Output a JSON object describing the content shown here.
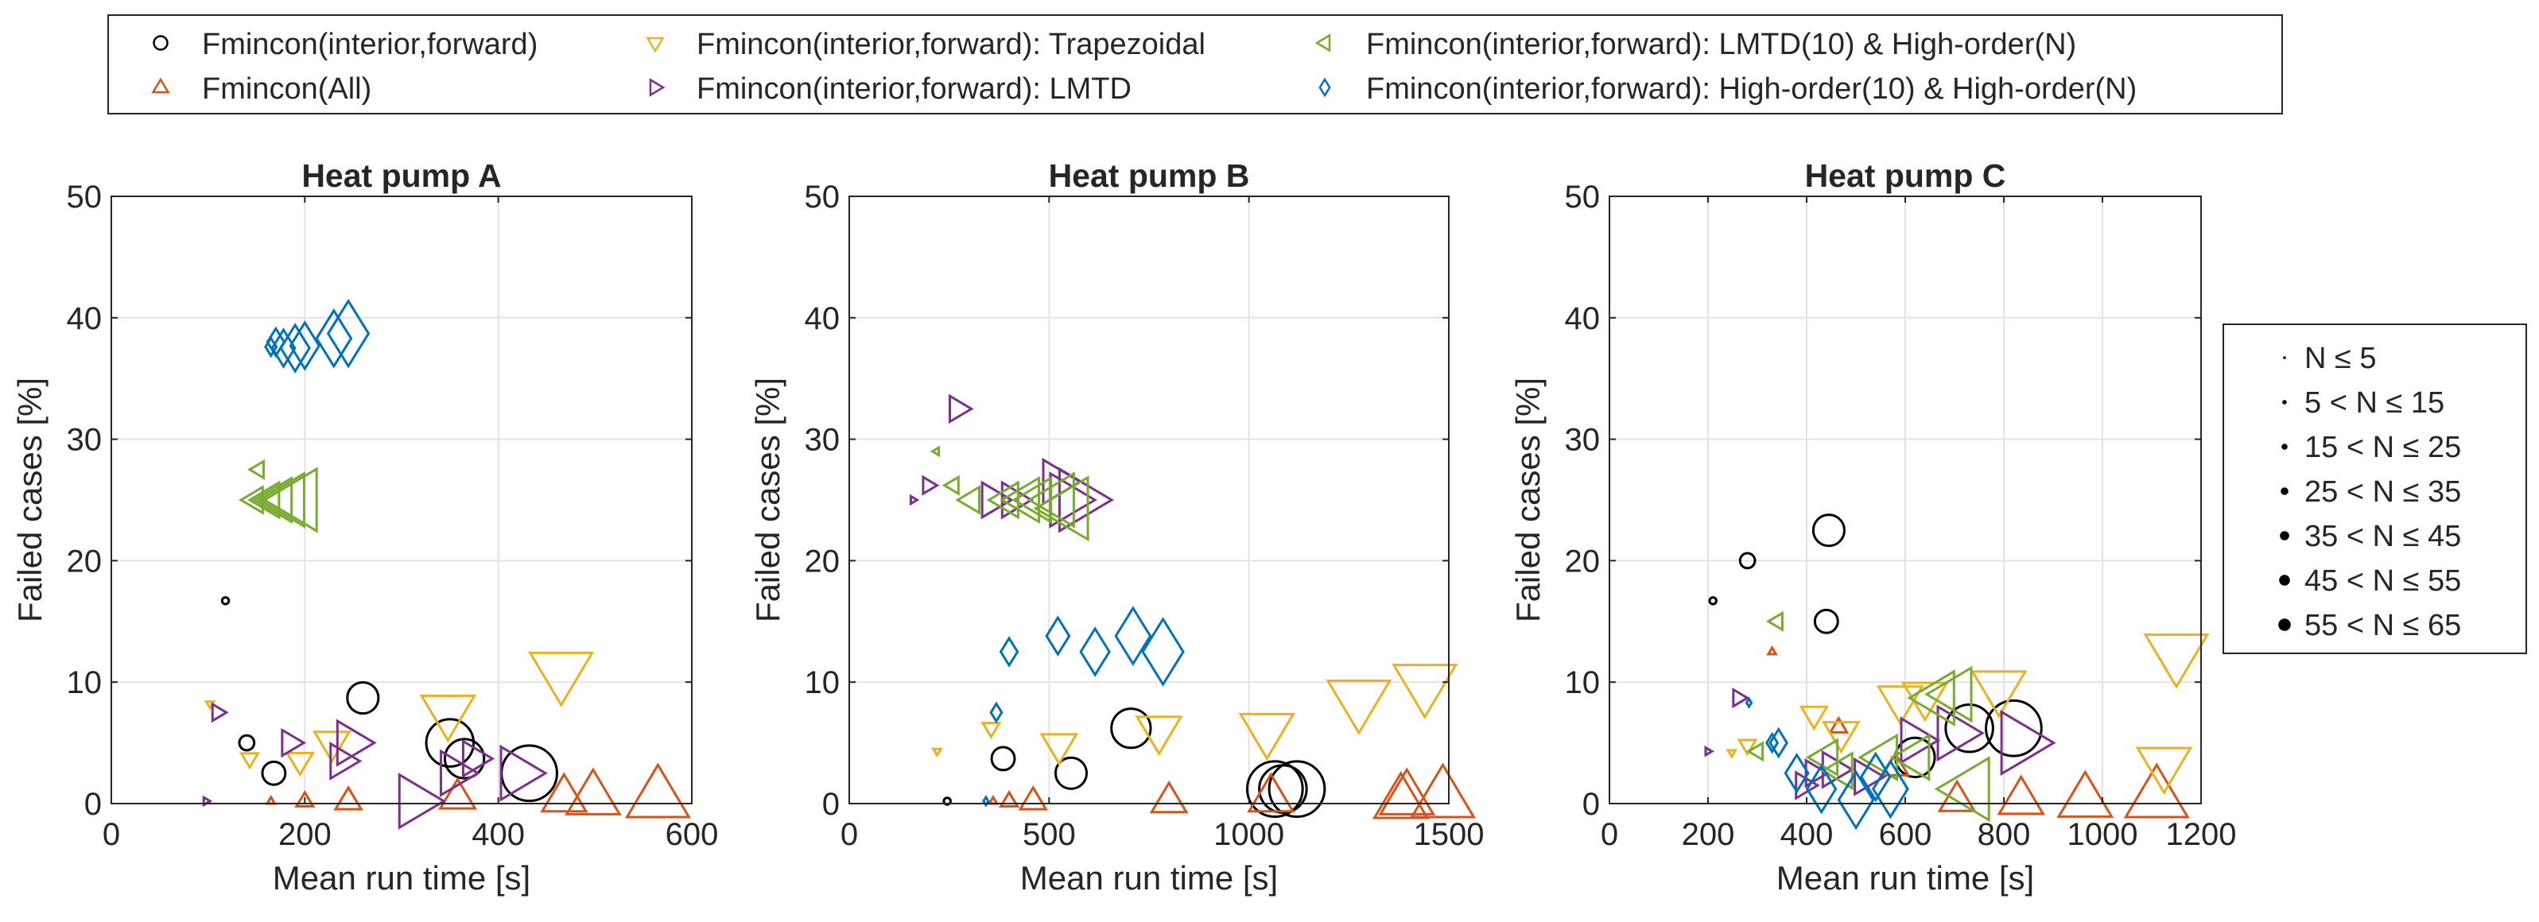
{
  "figure": {
    "top_legend": [
      {
        "label": "Fmincon(interior,forward)",
        "marker": "circle",
        "color": "#000000"
      },
      {
        "label": "Fmincon(All)",
        "marker": "triangle-up",
        "color": "#D95319"
      },
      {
        "label": "Fmincon(interior,forward): Trapezoidal",
        "marker": "triangle-down",
        "color": "#EDB120"
      },
      {
        "label": "Fmincon(interior,forward): LMTD",
        "marker": "triangle-right",
        "color": "#7E2F8E"
      },
      {
        "label": "Fmincon(interior,forward): LMTD(10) & High-order(N)",
        "marker": "triangle-left",
        "color": "#77AC30"
      },
      {
        "label": "Fmincon(interior,forward): High-order(10) & High-order(N)",
        "marker": "diamond",
        "color": "#0072BD"
      }
    ],
    "size_legend": [
      {
        "label": "N ≤ 5",
        "level": 1
      },
      {
        "label": "5 < N ≤ 15",
        "level": 2
      },
      {
        "label": "15 < N ≤ 25",
        "level": 3
      },
      {
        "label": "25 < N ≤ 35",
        "level": 4
      },
      {
        "label": "35 < N ≤ 45",
        "level": 5
      },
      {
        "label": "45 < N ≤ 55",
        "level": 6
      },
      {
        "label": "55 < N ≤ 65",
        "level": 7
      }
    ]
  },
  "chart_data": [
    {
      "type": "scatter",
      "title": "Heat pump A",
      "xlabel": "Mean run time [s]",
      "ylabel": "Failed cases [%]",
      "xlim": [
        0,
        600
      ],
      "ylim": [
        0,
        50
      ],
      "xticks": [
        0,
        200,
        400,
        600
      ],
      "yticks": [
        0,
        10,
        20,
        30,
        40,
        50
      ],
      "grid": true,
      "series": [
        {
          "name": "Fmincon(interior,forward)",
          "points": [
            [
              118,
              16.7,
              1
            ],
            [
              140,
              5,
              2
            ],
            [
              168,
              2.5,
              3
            ],
            [
              260,
              8.7,
              4
            ],
            [
              350,
              5,
              6
            ],
            [
              365,
              3.7,
              5
            ],
            [
              432,
              2.5,
              7
            ]
          ]
        },
        {
          "name": "Fmincon(All)",
          "points": [
            [
              165,
              0.2,
              1
            ],
            [
              200,
              0.2,
              2
            ],
            [
              245,
              0.2,
              3
            ],
            [
              358,
              0.5,
              4
            ],
            [
              468,
              0.5,
              5
            ],
            [
              498,
              0.5,
              6
            ],
            [
              565,
              0.5,
              7
            ]
          ]
        },
        {
          "name": "Fmincon(interior,forward): Trapezoidal",
          "points": [
            [
              102,
              8.2,
              1
            ],
            [
              143,
              3.7,
              2
            ],
            [
              195,
              3.5,
              3
            ],
            [
              228,
              5,
              4
            ],
            [
              348,
              7.5,
              6
            ],
            [
              465,
              10.8,
              7
            ]
          ]
        },
        {
          "name": "Fmincon(interior,forward): LMTD",
          "points": [
            [
              98,
              0.2,
              1
            ],
            [
              110,
              7.5,
              2
            ],
            [
              185,
              5,
              3
            ],
            [
              238,
              3.5,
              4
            ],
            [
              248,
              5,
              5
            ],
            [
              315,
              0.2,
              6
            ],
            [
              355,
              2.5,
              5
            ],
            [
              375,
              3.7,
              4
            ],
            [
              420,
              2.5,
              6
            ]
          ]
        },
        {
          "name": "Fmincon(interior,forward): LMTD(10) & High-order(N)",
          "points": [
            [
              152,
              27.5,
              2
            ],
            [
              148,
              25,
              3
            ],
            [
              162,
              25,
              4
            ],
            [
              172,
              25,
              5
            ],
            [
              182,
              25,
              6
            ],
            [
              192,
              25,
              7
            ]
          ]
        },
        {
          "name": "Fmincon(interior,forward): High-order(10) & High-order(N)",
          "points": [
            [
              165,
              37.6,
              2
            ],
            [
              170,
              38,
              3
            ],
            [
              178,
              37.5,
              4
            ],
            [
              190,
              37.5,
              5
            ],
            [
              200,
              37.7,
              5
            ],
            [
              230,
              38.3,
              6
            ],
            [
              245,
              38.7,
              7
            ]
          ]
        }
      ]
    },
    {
      "type": "scatter",
      "title": "Heat pump B",
      "xlabel": "Mean run time [s]",
      "ylabel": "Failed cases [%]",
      "xlim": [
        0,
        1500
      ],
      "ylim": [
        0,
        50
      ],
      "xticks": [
        0,
        500,
        1000,
        1500
      ],
      "yticks": [
        0,
        10,
        20,
        30,
        40,
        50
      ],
      "grid": true,
      "series": [
        {
          "name": "Fmincon(interior,forward)",
          "points": [
            [
              245,
              0.2,
              1
            ],
            [
              385,
              3.7,
              3
            ],
            [
              555,
              2.5,
              4
            ],
            [
              705,
              6.2,
              5
            ],
            [
              1065,
              1.2,
              7
            ],
            [
              1085,
              1.2,
              6
            ],
            [
              1120,
              1.2,
              7
            ]
          ]
        },
        {
          "name": "Fmincon(All)",
          "points": [
            [
              360,
              0.2,
              1
            ],
            [
              400,
              0.2,
              2
            ],
            [
              460,
              0.2,
              3
            ],
            [
              800,
              0.2,
              4
            ],
            [
              1055,
              0.5,
              5
            ],
            [
              1380,
              0.2,
              6
            ],
            [
              1395,
              0.5,
              6
            ],
            [
              1485,
              0.5,
              7
            ]
          ]
        },
        {
          "name": "Fmincon(interior,forward): Trapezoidal",
          "points": [
            [
              220,
              4.3,
              1
            ],
            [
              355,
              6.2,
              2
            ],
            [
              525,
              4.8,
              4
            ],
            [
              775,
              6,
              5
            ],
            [
              1045,
              6,
              6
            ],
            [
              1275,
              8.5,
              7
            ],
            [
              1440,
              9.8,
              7
            ]
          ]
        },
        {
          "name": "Fmincon(interior,forward): LMTD",
          "points": [
            [
              160,
              25,
              1
            ],
            [
              198,
              26.2,
              2
            ],
            [
              272,
              32.5,
              3
            ],
            [
              360,
              25,
              4
            ],
            [
              410,
              25,
              4
            ],
            [
              520,
              26.5,
              5
            ],
            [
              545,
              25,
              6
            ],
            [
              575,
              25,
              7
            ]
          ]
        },
        {
          "name": "Fmincon(interior,forward): LMTD(10) & High-order(N)",
          "points": [
            [
              218,
              29,
              1
            ],
            [
              260,
              26.2,
              2
            ],
            [
              305,
              25,
              3
            ],
            [
              395,
              25,
              4
            ],
            [
              440,
              25,
              5
            ],
            [
              470,
              25,
              5
            ],
            [
              520,
              25,
              6
            ],
            [
              548,
              24.3,
              7
            ]
          ]
        },
        {
          "name": "Fmincon(interior,forward): High-order(10) & High-order(N)",
          "points": [
            [
              342,
              0.2,
              1
            ],
            [
              368,
              7.5,
              2
            ],
            [
              400,
              12.5,
              3
            ],
            [
              522,
              13.8,
              4
            ],
            [
              615,
              12.5,
              5
            ],
            [
              710,
              13.8,
              6
            ],
            [
              785,
              12.5,
              7
            ]
          ]
        }
      ]
    },
    {
      "type": "scatter",
      "title": "Heat pump C",
      "xlabel": "Mean run time [s]",
      "ylabel": "Failed cases [%]",
      "xlim": [
        0,
        1200
      ],
      "ylim": [
        0,
        50
      ],
      "xticks": [
        0,
        200,
        400,
        600,
        800,
        1000,
        1200
      ],
      "yticks": [
        0,
        10,
        20,
        30,
        40,
        50
      ],
      "grid": true,
      "series": [
        {
          "name": "Fmincon(interior,forward)",
          "points": [
            [
              210,
              16.7,
              1
            ],
            [
              280,
              20,
              2
            ],
            [
              440,
              15,
              3
            ],
            [
              445,
              22.5,
              4
            ],
            [
              620,
              3.8,
              5
            ],
            [
              730,
              6.2,
              6
            ],
            [
              820,
              6.2,
              7
            ]
          ]
        },
        {
          "name": "Fmincon(All)",
          "points": [
            [
              330,
              12.5,
              1
            ],
            [
              465,
              6.3,
              2
            ],
            [
              580,
              3,
              3
            ],
            [
              705,
              0.3,
              4
            ],
            [
              835,
              0.3,
              5
            ],
            [
              965,
              0.3,
              6
            ],
            [
              1110,
              0.5,
              7
            ]
          ]
        },
        {
          "name": "Fmincon(interior,forward): Trapezoidal",
          "points": [
            [
              248,
              4.2,
              1
            ],
            [
              280,
              4.8,
              2
            ],
            [
              415,
              7.3,
              3
            ],
            [
              470,
              5.8,
              4
            ],
            [
              590,
              8.5,
              5
            ],
            [
              640,
              8.8,
              5
            ],
            [
              790,
              9.5,
              6
            ],
            [
              1125,
              3.2,
              6
            ],
            [
              1150,
              12.3,
              7
            ]
          ]
        },
        {
          "name": "Fmincon(interior,forward): LMTD",
          "points": [
            [
              200,
              4.3,
              1
            ],
            [
              262,
              8.7,
              2
            ],
            [
              395,
              1.5,
              3
            ],
            [
              415,
              2.5,
              3
            ],
            [
              455,
              2.8,
              4
            ],
            [
              520,
              2.2,
              4
            ],
            [
              620,
              5.2,
              5
            ],
            [
              700,
              5.8,
              6
            ],
            [
              835,
              5,
              7
            ]
          ]
        },
        {
          "name": "Fmincon(interior,forward): LMTD(10) & High-order(N)",
          "points": [
            [
              300,
              4.3,
              2
            ],
            [
              340,
              15,
              2
            ],
            [
              440,
              3.8,
              4
            ],
            [
              470,
              2.7,
              4
            ],
            [
              555,
              3.8,
              5
            ],
            [
              620,
              3.8,
              5
            ],
            [
              665,
              8.7,
              6
            ],
            [
              700,
              9,
              6
            ],
            [
              730,
              1.2,
              7
            ]
          ]
        },
        {
          "name": "Fmincon(interior,forward): High-order(10) & High-order(N)",
          "points": [
            [
              283,
              8.3,
              1
            ],
            [
              330,
              5,
              2
            ],
            [
              343,
              5,
              3
            ],
            [
              380,
              2.5,
              4
            ],
            [
              430,
              1.2,
              5
            ],
            [
              500,
              0.3,
              6
            ],
            [
              540,
              2.2,
              5
            ],
            [
              570,
              1.2,
              6
            ]
          ]
        }
      ]
    }
  ]
}
